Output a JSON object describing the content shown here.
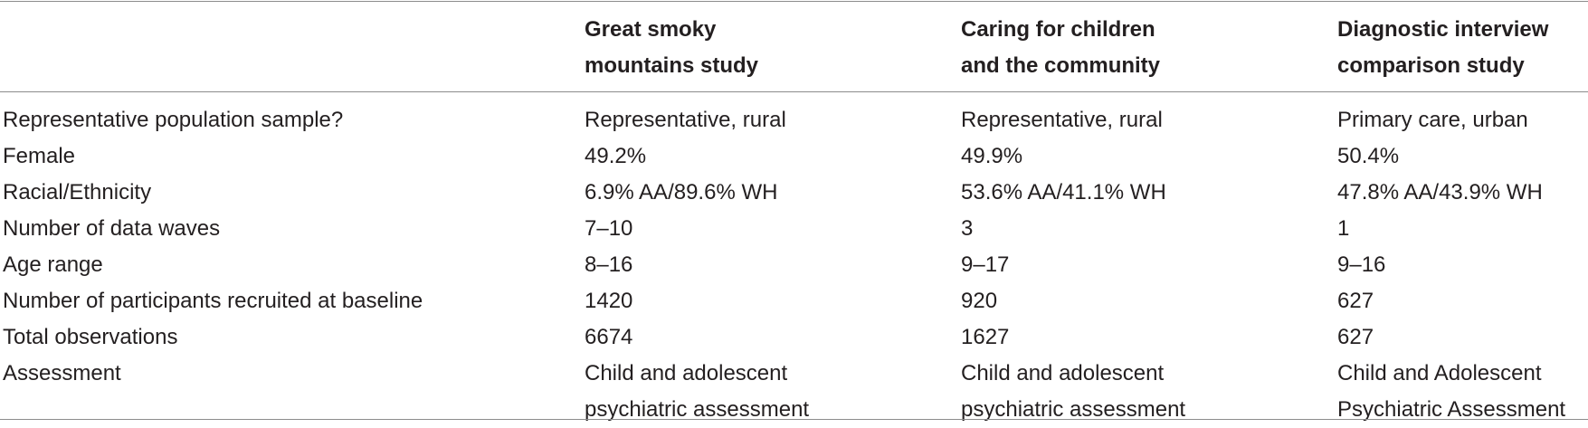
{
  "table": {
    "headers": [
      "",
      "Great smoky\nmountains study",
      "Caring for children\nand the community",
      "Diagnostic interview\ncomparison study"
    ],
    "rows": [
      {
        "label": "Representative population sample?",
        "values": [
          "Representative, rural",
          "Representative, rural",
          "Primary care, urban"
        ]
      },
      {
        "label": "Female",
        "values": [
          "49.2%",
          "49.9%",
          "50.4%"
        ]
      },
      {
        "label": "Racial/Ethnicity",
        "values": [
          "6.9% AA/89.6% WH",
          "53.6% AA/41.1% WH",
          "47.8% AA/43.9% WH"
        ]
      },
      {
        "label": "Number of data waves",
        "values": [
          "7–10",
          "3",
          "1"
        ]
      },
      {
        "label": "Age range",
        "values": [
          "8–16",
          "9–17",
          "9–16"
        ]
      },
      {
        "label": "Number of participants recruited at baseline",
        "values": [
          "1420",
          "920",
          "627"
        ]
      },
      {
        "label": "Total observations",
        "values": [
          "6674",
          "1627",
          "627"
        ]
      },
      {
        "label": "Assessment",
        "values": [
          "Child and adolescent\npsychiatric assessment",
          "Child and adolescent\npsychiatric assessment",
          "Child and Adolescent\nPsychiatric Assessment"
        ]
      }
    ]
  }
}
